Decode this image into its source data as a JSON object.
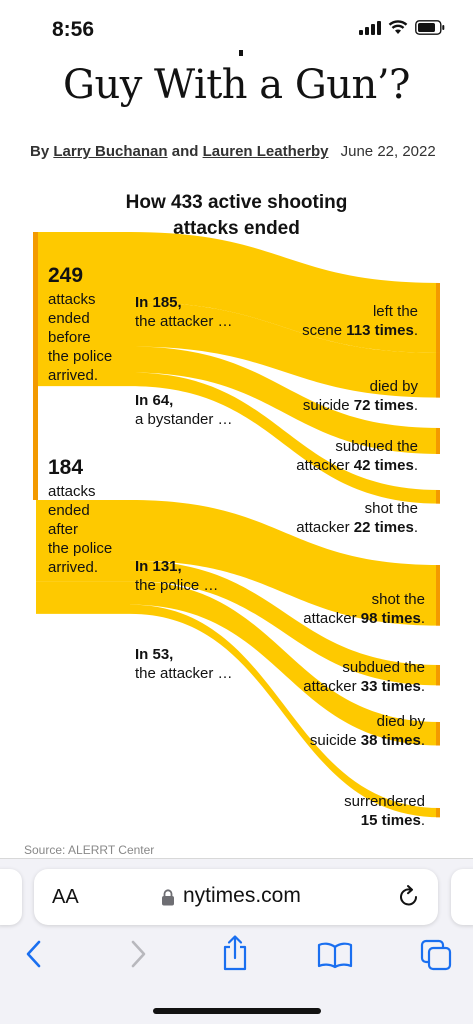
{
  "status": {
    "time": "8:56"
  },
  "article": {
    "headline": "Guy With a Gun’?",
    "byline_prefix": "By",
    "author1": "Larry Buchanan",
    "byline_and": "and",
    "author2": "Lauren Leatherby",
    "date": "June 22, 2022"
  },
  "chart_data": {
    "type": "sankey",
    "title_line1": "How 433 active shooting",
    "title_line2": "attacks ended",
    "colors": {
      "flow": "#fec900",
      "accent_bar": "#f39a00"
    },
    "total": 433,
    "groups": [
      {
        "value": "249",
        "lines": [
          "attacks",
          "ended",
          "before",
          "the police",
          "arrived."
        ]
      },
      {
        "value": "184",
        "lines": [
          "attacks",
          "ended",
          "after",
          "the police",
          "arrived."
        ]
      }
    ],
    "actors": [
      {
        "count": "In 185,",
        "label": "the attacker …",
        "value": 185
      },
      {
        "count": "In 64,",
        "label": "a bystander …",
        "value": 64
      },
      {
        "count": "In 131,",
        "label": "the police …",
        "value": 131
      },
      {
        "count": "In 53,",
        "label": "the attacker …",
        "value": 53
      }
    ],
    "outcomes": [
      {
        "line1": "left the",
        "line2_pre": "scene",
        "bold": "113 times",
        "value": 113
      },
      {
        "line1": "died by",
        "line2_pre": "suicide",
        "bold": "72 times",
        "value": 72
      },
      {
        "line1": "subdued the",
        "line2_pre": "attacker",
        "bold": "42 times",
        "value": 42
      },
      {
        "line1": "shot the",
        "line2_pre": "attacker",
        "bold": "22 times",
        "value": 22
      },
      {
        "line1": "shot the",
        "line2_pre": "attacker",
        "bold": "98 times",
        "value": 98
      },
      {
        "line1": "subdued the",
        "line2_pre": "attacker",
        "bold": "33 times",
        "value": 33
      },
      {
        "line1": "died by",
        "line2_pre": "suicide",
        "bold": "38 times",
        "value": 38
      },
      {
        "line1": "surrendered",
        "line2_pre": "",
        "bold": "15 times",
        "value": 15
      }
    ],
    "links": [
      {
        "source": "249 before police",
        "target": "attacker (185)",
        "value": 185
      },
      {
        "source": "249 before police",
        "target": "bystander (64)",
        "value": 64
      },
      {
        "source": "184 after police",
        "target": "police (131)",
        "value": 131
      },
      {
        "source": "184 after police",
        "target": "attacker (53)",
        "value": 53
      },
      {
        "source": "attacker (185)",
        "target": "left the scene",
        "value": 113
      },
      {
        "source": "attacker (185)",
        "target": "died by suicide",
        "value": 72
      },
      {
        "source": "bystander (64)",
        "target": "subdued the attacker",
        "value": 42
      },
      {
        "source": "bystander (64)",
        "target": "shot the attacker",
        "value": 22
      },
      {
        "source": "police (131)",
        "target": "shot the attacker",
        "value": 98
      },
      {
        "source": "police (131)",
        "target": "subdued the attacker",
        "value": 33
      },
      {
        "source": "attacker (53)",
        "target": "died by suicide",
        "value": 38
      },
      {
        "source": "attacker (53)",
        "target": "surrendered",
        "value": 15
      }
    ],
    "source": "Source: ALERRT Center"
  },
  "browser": {
    "aa_label": "AA",
    "url": "nytimes.com",
    "icons": [
      "lock-icon",
      "reload-icon",
      "back-icon",
      "forward-icon",
      "share-icon",
      "bookmarks-icon",
      "tabs-icon"
    ]
  }
}
